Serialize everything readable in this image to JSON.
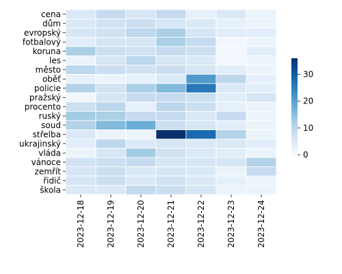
{
  "chart_data": {
    "type": "heatmap",
    "title": "",
    "xlabel": "",
    "ylabel": "",
    "x": [
      "2023-12-18",
      "2023-12-19",
      "2023-12-20",
      "2023-12-21",
      "2023-12-22",
      "2023-12-23",
      "2023-12-24"
    ],
    "y": [
      "cena",
      "dům",
      "evropský",
      "fotbalový",
      "koruna",
      "les",
      "město",
      "oběť",
      "policie",
      "pražský",
      "procento",
      "ruský",
      "soud",
      "střelba",
      "ukrajinský",
      "vláda",
      "vánoce",
      "zemřít",
      "řidič",
      "škola"
    ],
    "values": [
      [
        5,
        9,
        6,
        9,
        3,
        5,
        2
      ],
      [
        5,
        7,
        8,
        6,
        5,
        3,
        2
      ],
      [
        6,
        7,
        10,
        12,
        6,
        4,
        4
      ],
      [
        4,
        6,
        6,
        12,
        9,
        1,
        2
      ],
      [
        12,
        8,
        7,
        9,
        8,
        1,
        4
      ],
      [
        2,
        6,
        10,
        6,
        5,
        1,
        2
      ],
      [
        10,
        8,
        7,
        8,
        6,
        4,
        2
      ],
      [
        3,
        2,
        3,
        5,
        21,
        10,
        3
      ],
      [
        11,
        7,
        12,
        16,
        26,
        5,
        4
      ],
      [
        1,
        6,
        9,
        9,
        8,
        4,
        6
      ],
      [
        8,
        10,
        3,
        10,
        8,
        3,
        2
      ],
      [
        13,
        12,
        9,
        9,
        5,
        9,
        2
      ],
      [
        11,
        16,
        18,
        8,
        6,
        4,
        2
      ],
      [
        5,
        2,
        2,
        36,
        28,
        11,
        2
      ],
      [
        4,
        10,
        5,
        6,
        5,
        5,
        4
      ],
      [
        2,
        6,
        13,
        7,
        5,
        4,
        2
      ],
      [
        7,
        8,
        9,
        6,
        6,
        6,
        11
      ],
      [
        6,
        8,
        5,
        6,
        5,
        2,
        9
      ],
      [
        6,
        8,
        5,
        7,
        5,
        3,
        2
      ],
      [
        5,
        5,
        9,
        8,
        6,
        2,
        2
      ]
    ],
    "vmin": 0,
    "vmax": 36,
    "colormap": "Blues",
    "colorbar_ticks": [
      0,
      10,
      20,
      30
    ]
  }
}
